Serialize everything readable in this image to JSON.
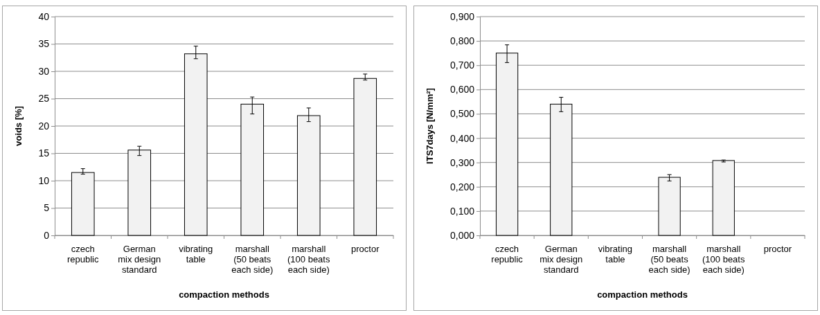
{
  "chart_data": [
    {
      "type": "bar",
      "xlabel": "compaction methods",
      "ylabel": "voids [%]",
      "categories": [
        "czech\nrepublic",
        "German\nmix design\nstandard",
        "vibrating\ntable",
        "marshall\n(50 beats\neach side)",
        "marshall\n(100 beats\neach side)",
        "proctor"
      ],
      "series": [
        {
          "color": "#f2f2f2",
          "values": [
            11.5,
            15.6,
            33.2,
            24.0,
            21.9,
            28.7
          ],
          "errors": [
            [
              11.2,
              12.2
            ],
            [
              14.6,
              16.3
            ],
            [
              32.3,
              34.6
            ],
            [
              22.2,
              25.3
            ],
            [
              20.8,
              23.3
            ],
            [
              28.4,
              29.5
            ]
          ]
        }
      ],
      "ylim": [
        0,
        40
      ],
      "yticks": [
        0,
        5,
        10,
        15,
        20,
        25,
        30,
        35,
        40
      ],
      "grid": "y"
    },
    {
      "type": "bar",
      "xlabel": "compaction methods",
      "ylabel": "ITS7days [N/mm²]",
      "categories": [
        "czech\nrepublic",
        "German\nmix design\nstandard",
        "vibrating\ntable",
        "marshall\n(50 beats\neach side)",
        "marshall\n(100 beats\neach side)",
        "proctor"
      ],
      "series": [
        {
          "color": "#f2f2f2",
          "values": [
            0.75,
            0.54,
            null,
            0.239,
            0.308,
            null
          ],
          "errors": [
            [
              0.711,
              0.784
            ],
            [
              0.509,
              0.568
            ],
            null,
            [
              0.224,
              0.25
            ],
            [
              0.302,
              0.31
            ],
            null
          ]
        }
      ],
      "ylim": [
        0,
        0.9
      ],
      "yticks": [
        {
          "value": 0,
          "label": "0,000"
        },
        {
          "value": 0.1,
          "label": "0,100"
        },
        {
          "value": 0.2,
          "label": "0,200"
        },
        {
          "value": 0.3,
          "label": "0,300"
        },
        {
          "value": 0.4,
          "label": "0,400"
        },
        {
          "value": 0.5,
          "label": "0,500"
        },
        {
          "value": 0.6,
          "label": "0,600"
        },
        {
          "value": 0.7,
          "label": "0,700"
        },
        {
          "value": 0.8,
          "label": "0,800"
        },
        {
          "value": 0.9,
          "label": "0,900"
        }
      ],
      "grid": "y"
    }
  ]
}
